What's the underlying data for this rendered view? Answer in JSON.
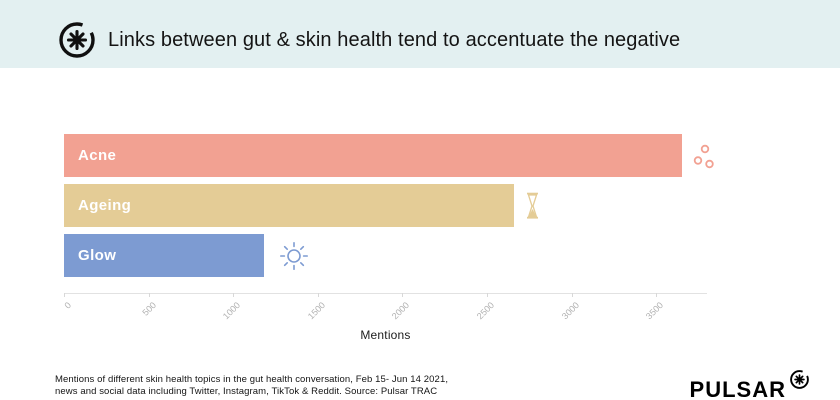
{
  "header": {
    "title": "Links between gut & skin health tend to accentuate the negative"
  },
  "chart_data": {
    "type": "bar",
    "orientation": "horizontal",
    "title": "Links between gut & skin health tend to accentuate the negative",
    "categories": [
      "Acne",
      "Ageing",
      "Glow"
    ],
    "values": [
      3650,
      2660,
      1180
    ],
    "colors": [
      "#f2a192",
      "#e4cc96",
      "#7d9bd2"
    ],
    "icons": [
      "acne-spots-icon",
      "hourglass-icon",
      "sun-icon"
    ],
    "xlabel": "Mentions",
    "xlim": [
      0,
      3800
    ],
    "xticks": [
      0,
      500,
      1000,
      1500,
      2000,
      2500,
      3000,
      3500
    ],
    "grid": "off",
    "legend": "none"
  },
  "footer": {
    "caption_lines": [
      "Mentions of different skin health topics in the gut health conversation, Feb 15- Jun 14 2021,",
      "news and social data including Twitter, Instagram, TikTok & Reddit. Source: Pulsar TRAC"
    ],
    "brand": "PULSAR"
  }
}
